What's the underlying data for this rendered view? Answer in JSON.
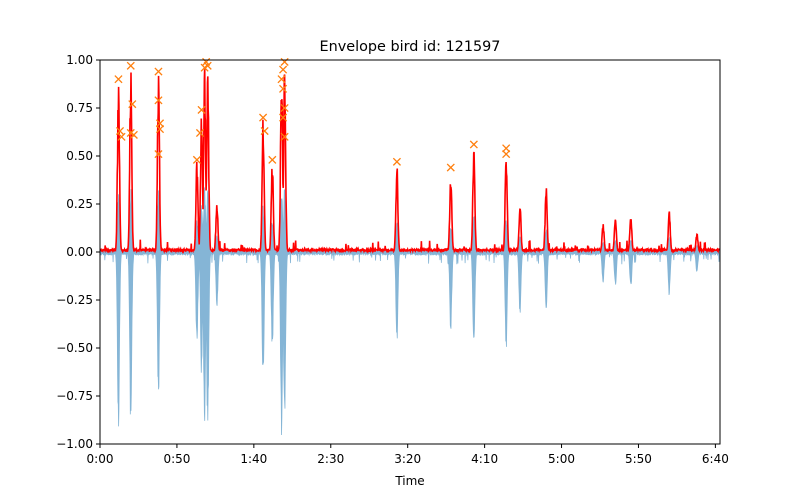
{
  "chart_data": {
    "type": "line",
    "title": "Envelope bird id: 121597",
    "xlabel": "Time",
    "ylabel": "",
    "xlim": [
      0,
      403
    ],
    "ylim": [
      -1.0,
      1.0
    ],
    "grid": false,
    "legend": "none",
    "x_ticks": [
      {
        "value": 0,
        "label": "0:00"
      },
      {
        "value": 50,
        "label": "0:50"
      },
      {
        "value": 100,
        "label": "1:40"
      },
      {
        "value": 150,
        "label": "2:30"
      },
      {
        "value": 200,
        "label": "3:20"
      },
      {
        "value": 250,
        "label": "4:10"
      },
      {
        "value": 300,
        "label": "5:00"
      },
      {
        "value": 350,
        "label": "5:50"
      },
      {
        "value": 400,
        "label": "6:40"
      }
    ],
    "y_ticks": [
      {
        "value": -1.0,
        "label": "−1.00"
      },
      {
        "value": -0.75,
        "label": "−0.75"
      },
      {
        "value": -0.5,
        "label": "−0.50"
      },
      {
        "value": -0.25,
        "label": "−0.25"
      },
      {
        "value": 0.0,
        "label": "0.00"
      },
      {
        "value": 0.25,
        "label": "0.25"
      },
      {
        "value": 0.5,
        "label": "0.50"
      },
      {
        "value": 0.75,
        "label": "0.75"
      },
      {
        "value": 1.0,
        "label": "1.00"
      }
    ],
    "colors": {
      "waveform": "#7fb2d4",
      "envelope": "#ff0000",
      "peaks": "#ff7f0e"
    },
    "bursts": [
      {
        "x": 12,
        "amp": 0.9,
        "neg": 0.96
      },
      {
        "x": 20,
        "amp": 0.97,
        "neg": 0.97
      },
      {
        "x": 38,
        "amp": 0.94,
        "neg": 0.83
      },
      {
        "x": 63,
        "amp": 0.48,
        "neg": 0.5
      },
      {
        "x": 66,
        "amp": 0.74,
        "neg": 0.68
      },
      {
        "x": 68,
        "amp": 0.99,
        "neg": 0.99
      },
      {
        "x": 70,
        "amp": 0.99,
        "neg": 0.99
      },
      {
        "x": 76,
        "amp": 0.28,
        "neg": 0.3
      },
      {
        "x": 106,
        "amp": 0.7,
        "neg": 0.69
      },
      {
        "x": 112,
        "amp": 0.48,
        "neg": 0.52
      },
      {
        "x": 118,
        "amp": 0.96,
        "neg": 0.98
      },
      {
        "x": 120,
        "amp": 0.99,
        "neg": 0.97
      },
      {
        "x": 193,
        "amp": 0.47,
        "neg": 0.48
      },
      {
        "x": 228,
        "amp": 0.44,
        "neg": 0.43
      },
      {
        "x": 243,
        "amp": 0.56,
        "neg": 0.56
      },
      {
        "x": 264,
        "amp": 0.54,
        "neg": 0.53
      },
      {
        "x": 273,
        "amp": 0.25,
        "neg": 0.34
      },
      {
        "x": 290,
        "amp": 0.35,
        "neg": 0.34
      },
      {
        "x": 327,
        "amp": 0.15,
        "neg": 0.17
      },
      {
        "x": 335,
        "amp": 0.18,
        "neg": 0.19
      },
      {
        "x": 345,
        "amp": 0.2,
        "neg": 0.2
      },
      {
        "x": 370,
        "amp": 0.22,
        "neg": 0.23
      },
      {
        "x": 388,
        "amp": 0.1,
        "neg": 0.11
      }
    ],
    "peaks": [
      {
        "x": 12,
        "y": 0.9
      },
      {
        "x": 13,
        "y": 0.63
      },
      {
        "x": 14,
        "y": 0.6
      },
      {
        "x": 20,
        "y": 0.97
      },
      {
        "x": 21,
        "y": 0.77
      },
      {
        "x": 20,
        "y": 0.62
      },
      {
        "x": 22,
        "y": 0.61
      },
      {
        "x": 38,
        "y": 0.94
      },
      {
        "x": 38,
        "y": 0.79
      },
      {
        "x": 39,
        "y": 0.67
      },
      {
        "x": 39,
        "y": 0.64
      },
      {
        "x": 38,
        "y": 0.51
      },
      {
        "x": 63,
        "y": 0.48
      },
      {
        "x": 65,
        "y": 0.62
      },
      {
        "x": 66,
        "y": 0.74
      },
      {
        "x": 68,
        "y": 0.96
      },
      {
        "x": 69,
        "y": 0.99
      },
      {
        "x": 70,
        "y": 0.97
      },
      {
        "x": 106,
        "y": 0.7
      },
      {
        "x": 107,
        "y": 0.63
      },
      {
        "x": 112,
        "y": 0.48
      },
      {
        "x": 118,
        "y": 0.9
      },
      {
        "x": 119,
        "y": 0.95
      },
      {
        "x": 120,
        "y": 0.99
      },
      {
        "x": 119,
        "y": 0.85
      },
      {
        "x": 120,
        "y": 0.75
      },
      {
        "x": 119,
        "y": 0.7
      },
      {
        "x": 120,
        "y": 0.6
      },
      {
        "x": 193,
        "y": 0.47
      },
      {
        "x": 228,
        "y": 0.44
      },
      {
        "x": 243,
        "y": 0.56
      },
      {
        "x": 264,
        "y": 0.54
      },
      {
        "x": 264,
        "y": 0.51
      }
    ]
  }
}
